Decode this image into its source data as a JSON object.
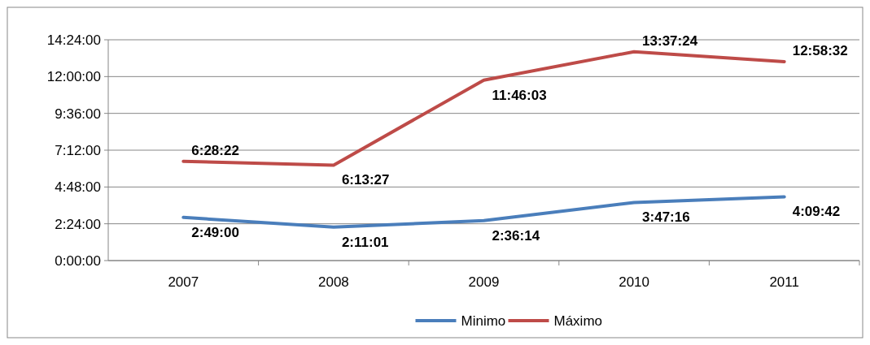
{
  "chart_data": {
    "type": "line",
    "categories": [
      "2007",
      "2008",
      "2009",
      "2010",
      "2011"
    ],
    "series": [
      {
        "name": "Minimo",
        "color": "#4a7ebb",
        "values": [
          2.8167,
          2.1836,
          2.6039,
          3.7878,
          4.1617
        ],
        "value_labels": [
          "2:49:00",
          "2:11:01",
          "2:36:14",
          "3:47:16",
          "4:09:42"
        ]
      },
      {
        "name": "Máximo",
        "color": "#be4b48",
        "values": [
          6.4728,
          6.2242,
          11.7675,
          13.6233,
          12.9756
        ],
        "value_labels": [
          "6:28:22",
          "6:13:27",
          "11:46:03",
          "13:37:24",
          "12:58:32"
        ]
      }
    ],
    "ylim": [
      0,
      14.4
    ],
    "yticks": [
      {
        "value": 0,
        "label": "0:00:00"
      },
      {
        "value": 2.4,
        "label": "2:24:00"
      },
      {
        "value": 4.8,
        "label": "4:48:00"
      },
      {
        "value": 7.2,
        "label": "7:12:00"
      },
      {
        "value": 9.6,
        "label": "9:36:00"
      },
      {
        "value": 12,
        "label": "12:00:00"
      },
      {
        "value": 14.4,
        "label": "14:24:00"
      }
    ],
    "grid": "y",
    "legend": "bottom",
    "line_style": "solid",
    "marker": "none"
  }
}
